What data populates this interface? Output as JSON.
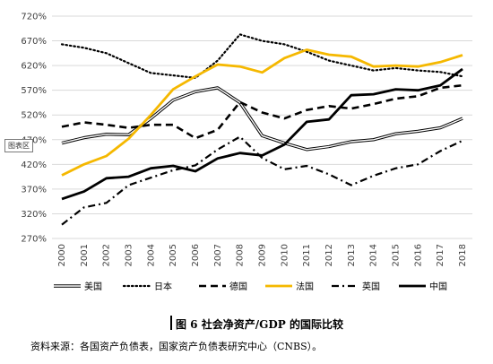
{
  "chart_data": {
    "type": "line",
    "title": "",
    "xlabel": "",
    "ylabel": "",
    "ylim": [
      270,
      720
    ],
    "yticks": [
      "270%",
      "320%",
      "370%",
      "420%",
      "470%",
      "520%",
      "570%",
      "620%",
      "670%",
      "720%"
    ],
    "x": [
      "2000",
      "2001",
      "2002",
      "2003",
      "2004",
      "2005",
      "2006",
      "2007",
      "2008",
      "2009",
      "2010",
      "2011",
      "2012",
      "2013",
      "2014",
      "2015",
      "2016",
      "2017",
      "2018"
    ],
    "grid": true,
    "legend_position": "bottom",
    "series": [
      {
        "name": "美国",
        "style": "double",
        "color": "#000000",
        "values": [
          463,
          474,
          481,
          480,
          513,
          550,
          567,
          575,
          545,
          478,
          463,
          450,
          456,
          466,
          470,
          482,
          487,
          494,
          513
        ]
      },
      {
        "name": "日本",
        "style": "dotted",
        "color": "#000000",
        "values": [
          663,
          656,
          645,
          625,
          605,
          600,
          595,
          630,
          683,
          670,
          663,
          648,
          630,
          620,
          610,
          615,
          610,
          607,
          598
        ]
      },
      {
        "name": "德国",
        "style": "dashed",
        "color": "#000000",
        "values": [
          496,
          505,
          500,
          494,
          500,
          500,
          473,
          490,
          546,
          525,
          513,
          530,
          538,
          533,
          542,
          553,
          558,
          575,
          580
        ]
      },
      {
        "name": "法国",
        "style": "solid-gold",
        "color": "#f5b800",
        "values": [
          398,
          420,
          437,
          472,
          520,
          572,
          598,
          622,
          618,
          606,
          635,
          652,
          642,
          638,
          618,
          620,
          618,
          627,
          641
        ]
      },
      {
        "name": "英国",
        "style": "dashdot",
        "color": "#000000",
        "values": [
          298,
          333,
          342,
          378,
          393,
          408,
          418,
          450,
          476,
          433,
          410,
          417,
          400,
          378,
          397,
          412,
          420,
          447,
          468
        ]
      },
      {
        "name": "中国",
        "style": "solid-thick",
        "color": "#000000",
        "values": [
          350,
          365,
          392,
          395,
          412,
          417,
          406,
          432,
          443,
          438,
          460,
          506,
          511,
          560,
          562,
          572,
          570,
          580,
          613
        ]
      }
    ]
  },
  "ui": {
    "tag_label": "图表区",
    "figure_caption": "图 6  社会净资产/GDP 的国际比较",
    "source_note": "资料来源：各国资产负债表，国家资产负债表研究中心（CNBS）。"
  }
}
